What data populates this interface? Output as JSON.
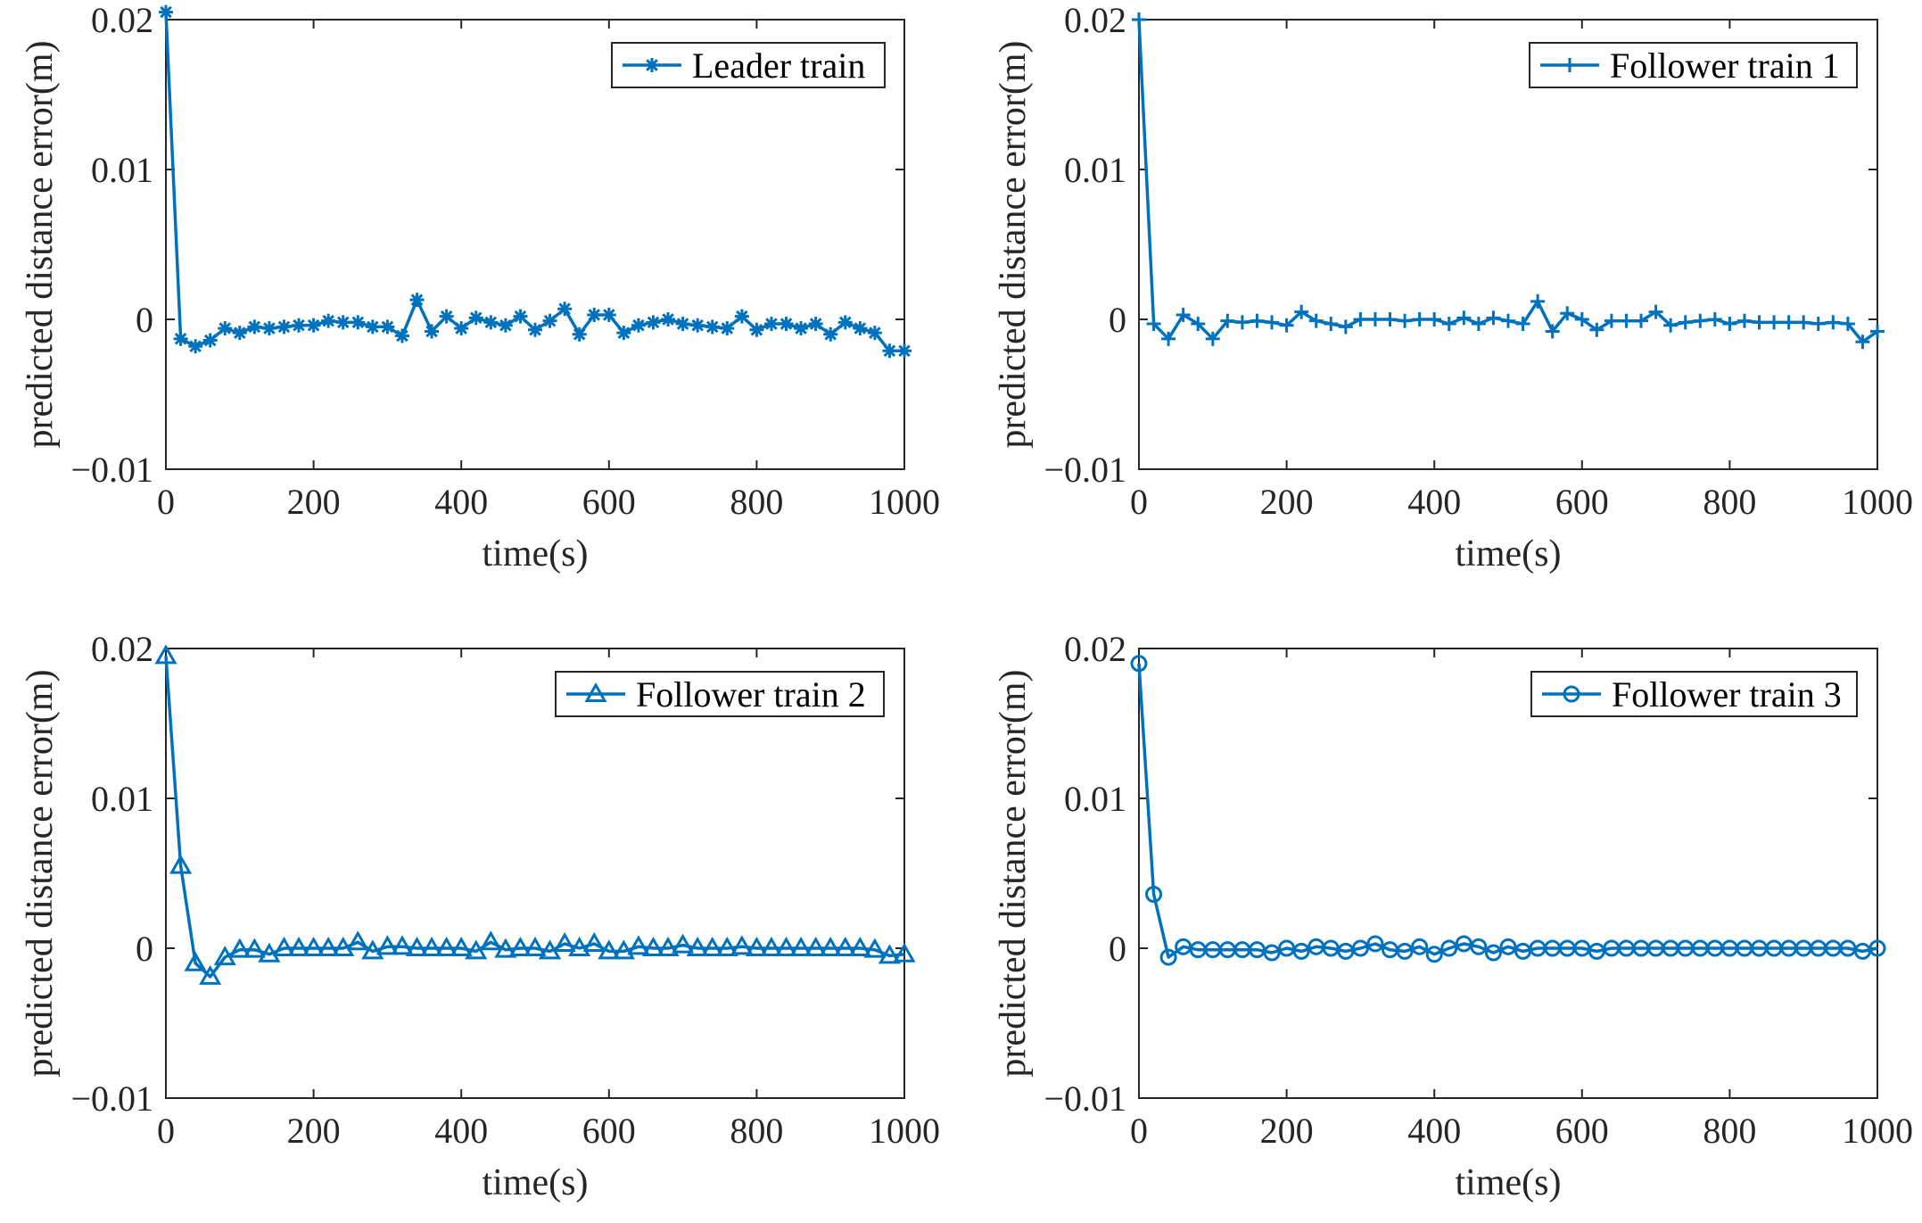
{
  "colors": {
    "series": "#0072BD",
    "axis": "#262626",
    "legend_border": "#262626"
  },
  "chart_data": [
    {
      "type": "line",
      "marker": "asterisk",
      "series_name": "Leader train",
      "xlabel": "time(s)",
      "ylabel": "predicted distance error(m)",
      "xlim": [
        0,
        1000
      ],
      "ylim": [
        -0.01,
        0.02
      ],
      "xticks": [
        0,
        200,
        400,
        600,
        800,
        1000
      ],
      "xtick_labels": [
        "0",
        "200",
        "400",
        "600",
        "800",
        "1000"
      ],
      "yticks": [
        -0.01,
        0,
        0.01,
        0.02
      ],
      "ytick_labels": [
        "−0.01",
        "0",
        "0.01",
        "0.02"
      ],
      "legend_position": "top-right",
      "x": [
        0,
        20,
        40,
        60,
        80,
        100,
        120,
        140,
        160,
        180,
        200,
        220,
        240,
        260,
        280,
        300,
        320,
        340,
        360,
        380,
        400,
        420,
        440,
        460,
        480,
        500,
        520,
        540,
        560,
        580,
        600,
        620,
        640,
        660,
        680,
        700,
        720,
        740,
        760,
        780,
        800,
        820,
        840,
        860,
        880,
        900,
        920,
        940,
        960,
        980,
        1000
      ],
      "y": [
        0.0205,
        -0.0013,
        -0.0018,
        -0.0014,
        -0.0006,
        -0.0009,
        -0.0005,
        -0.0006,
        -0.0005,
        -0.0004,
        -0.0004,
        -0.0001,
        -0.0002,
        -0.0002,
        -0.0005,
        -0.0005,
        -0.0011,
        0.0013,
        -0.0008,
        0.0002,
        -0.0006,
        0.0001,
        -0.0002,
        -0.0004,
        0.0002,
        -0.0007,
        -0.0001,
        0.0007,
        -0.001,
        0.0003,
        0.0003,
        -0.0009,
        -0.0004,
        -0.0002,
        0.0,
        -0.0003,
        -0.0004,
        -0.0005,
        -0.0006,
        0.0002,
        -0.0007,
        -0.0003,
        -0.0003,
        -0.0006,
        -0.0003,
        -0.001,
        -0.0002,
        -0.0006,
        -0.0009,
        -0.0021,
        -0.0021
      ]
    },
    {
      "type": "line",
      "marker": "plus",
      "series_name": "Follower train 1",
      "xlabel": "time(s)",
      "ylabel": "predicted distance error(m)",
      "xlim": [
        0,
        1000
      ],
      "ylim": [
        -0.01,
        0.02
      ],
      "xticks": [
        0,
        200,
        400,
        600,
        800,
        1000
      ],
      "xtick_labels": [
        "0",
        "200",
        "400",
        "600",
        "800",
        "1000"
      ],
      "yticks": [
        -0.01,
        0,
        0.01,
        0.02
      ],
      "ytick_labels": [
        "−0.01",
        "0",
        "0.01",
        "0.02"
      ],
      "legend_position": "top-right",
      "x": [
        0,
        20,
        40,
        60,
        80,
        100,
        120,
        140,
        160,
        180,
        200,
        220,
        240,
        260,
        280,
        300,
        320,
        340,
        360,
        380,
        400,
        420,
        440,
        460,
        480,
        500,
        520,
        540,
        560,
        580,
        600,
        620,
        640,
        660,
        680,
        700,
        720,
        740,
        760,
        780,
        800,
        820,
        840,
        860,
        880,
        900,
        920,
        940,
        960,
        980,
        1000
      ],
      "y": [
        0.02,
        -0.0003,
        -0.0013,
        0.0003,
        -0.0003,
        -0.0013,
        -0.0001,
        -0.0002,
        -0.0001,
        -0.0002,
        -0.0004,
        0.0005,
        -0.0001,
        -0.0003,
        -0.0005,
        0.0,
        0.0,
        0.0,
        -0.0001,
        0.0,
        0.0,
        -0.0003,
        0.0001,
        -0.0003,
        0.0001,
        -0.0001,
        -0.0003,
        0.0012,
        -0.0008,
        0.0004,
        0.0,
        -0.0007,
        -0.0001,
        -0.0001,
        -0.0001,
        0.0005,
        -0.0004,
        -0.0002,
        -0.0001,
        0.0,
        -0.0003,
        -0.0001,
        -0.0002,
        -0.0002,
        -0.0002,
        -0.0002,
        -0.0003,
        -0.0002,
        -0.0003,
        -0.0015,
        -0.0008
      ]
    },
    {
      "type": "line",
      "marker": "triangle",
      "series_name": "Follower train 2",
      "xlabel": "time(s)",
      "ylabel": "predicted distance error(m)",
      "xlim": [
        0,
        1000
      ],
      "ylim": [
        -0.01,
        0.02
      ],
      "xticks": [
        0,
        200,
        400,
        600,
        800,
        1000
      ],
      "xtick_labels": [
        "0",
        "200",
        "400",
        "600",
        "800",
        "1000"
      ],
      "yticks": [
        -0.01,
        0,
        0.01,
        0.02
      ],
      "ytick_labels": [
        "−0.01",
        "0",
        "0.01",
        "0.02"
      ],
      "legend_position": "top-right",
      "x": [
        0,
        20,
        40,
        60,
        80,
        100,
        120,
        140,
        160,
        180,
        200,
        220,
        240,
        260,
        280,
        300,
        320,
        340,
        360,
        380,
        400,
        420,
        440,
        460,
        480,
        500,
        520,
        540,
        560,
        580,
        600,
        620,
        640,
        660,
        680,
        700,
        720,
        740,
        760,
        780,
        800,
        820,
        840,
        860,
        880,
        900,
        920,
        940,
        960,
        980,
        1000
      ],
      "y": [
        0.0195,
        0.0055,
        -0.001,
        -0.0019,
        -0.0006,
        -0.0001,
        -0.0001,
        -0.0004,
        0.0,
        0.0,
        0.0,
        0.0,
        0.0,
        0.0004,
        -0.0002,
        0.0001,
        0.0001,
        0.0,
        0.0,
        0.0,
        0.0,
        -0.0002,
        0.0004,
        -0.0001,
        0.0,
        0.0,
        -0.0002,
        0.0003,
        0.0,
        0.0003,
        -0.0002,
        -0.0002,
        0.0001,
        0.0,
        0.0,
        0.0002,
        0.0,
        0.0,
        0.0,
        0.0001,
        0.0,
        0.0,
        0.0,
        0.0,
        0.0,
        0.0,
        0.0,
        0.0,
        -0.0001,
        -0.0005,
        -0.0004
      ]
    },
    {
      "type": "line",
      "marker": "circle",
      "series_name": "Follower train 3",
      "xlabel": "time(s)",
      "ylabel": "predicted distance error(m)",
      "xlim": [
        0,
        1000
      ],
      "ylim": [
        -0.01,
        0.02
      ],
      "xticks": [
        0,
        200,
        400,
        600,
        800,
        1000
      ],
      "xtick_labels": [
        "0",
        "200",
        "400",
        "600",
        "800",
        "1000"
      ],
      "yticks": [
        -0.01,
        0,
        0.01,
        0.02
      ],
      "ytick_labels": [
        "−0.01",
        "0",
        "0.01",
        "0.02"
      ],
      "legend_position": "top-right",
      "x": [
        0,
        20,
        40,
        60,
        80,
        100,
        120,
        140,
        160,
        180,
        200,
        220,
        240,
        260,
        280,
        300,
        320,
        340,
        360,
        380,
        400,
        420,
        440,
        460,
        480,
        500,
        520,
        540,
        560,
        580,
        600,
        620,
        640,
        660,
        680,
        700,
        720,
        740,
        760,
        780,
        800,
        820,
        840,
        860,
        880,
        900,
        920,
        940,
        960,
        980,
        1000
      ],
      "y": [
        0.019,
        0.0036,
        -0.0006,
        0.0001,
        -0.0001,
        -0.0001,
        -0.0001,
        -0.0001,
        -0.0001,
        -0.0003,
        0.0,
        -0.0002,
        0.0001,
        0.0,
        -0.0002,
        0.0,
        0.0003,
        -0.0001,
        -0.0002,
        0.0001,
        -0.0004,
        0.0,
        0.0003,
        0.0001,
        -0.0003,
        0.0001,
        -0.0002,
        0.0,
        0.0,
        0.0,
        0.0,
        -0.0002,
        0.0,
        0.0,
        0.0,
        0.0,
        0.0,
        0.0,
        0.0,
        0.0,
        0.0,
        0.0,
        0.0,
        0.0,
        0.0,
        0.0,
        0.0,
        0.0,
        0.0,
        -0.0002,
        0.0
      ]
    }
  ]
}
